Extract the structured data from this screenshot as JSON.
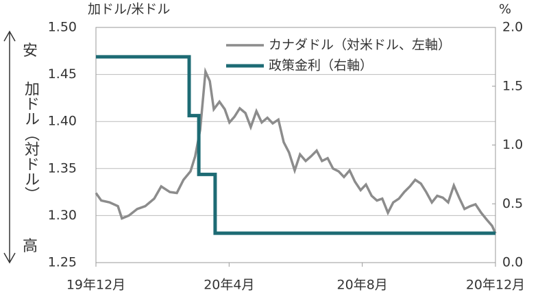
{
  "chart_data": {
    "type": "line",
    "y_label": "加ドル/米ドル",
    "y2_label": "%",
    "annotations": [
      "安",
      "加ドル（対ドル）",
      "高"
    ],
    "xlim": [
      0,
      12
    ],
    "xticks": [
      {
        "value": 0,
        "label": "19年12月"
      },
      {
        "value": 4,
        "label": "20年4月"
      },
      {
        "value": 8,
        "label": "20年8月"
      },
      {
        "value": 12,
        "label": "20年12月"
      }
    ],
    "ylim": [
      1.25,
      1.5
    ],
    "yticks": [
      {
        "value": 1.5,
        "label": "1.50"
      },
      1.45,
      {
        "value": 1.4,
        "label": "1.40"
      },
      1.35,
      {
        "value": 1.3,
        "label": "1.30"
      },
      1.25
    ],
    "y2lim": [
      0,
      2
    ],
    "y2ticks": [
      {
        "value": 2,
        "label": "2.0"
      },
      1.5,
      {
        "value": 1,
        "label": "1.0"
      },
      0.5,
      {
        "value": 0,
        "label": "0.0"
      }
    ],
    "grid": true,
    "legend": "top-right",
    "series": [
      {
        "name": "カナダドル（対米ドル、左軸）",
        "color": "#8c8c8c",
        "axis": "y",
        "x": [
          0,
          0.16,
          0.41,
          0.66,
          0.78,
          0.99,
          1.24,
          1.48,
          1.75,
          1.96,
          2.22,
          2.43,
          2.63,
          2.84,
          2.98,
          3.13,
          3.29,
          3.42,
          3.54,
          3.71,
          3.87,
          4.01,
          4.16,
          4.32,
          4.49,
          4.65,
          4.82,
          4.98,
          5.15,
          5.31,
          5.48,
          5.64,
          5.8,
          5.97,
          6.13,
          6.3,
          6.46,
          6.63,
          6.79,
          6.96,
          7.12,
          7.29,
          7.45,
          7.62,
          7.78,
          7.95,
          8.11,
          8.28,
          8.44,
          8.6,
          8.77,
          8.93,
          9.1,
          9.26,
          9.43,
          9.59,
          9.76,
          9.92,
          10.09,
          10.25,
          10.42,
          10.58,
          10.75,
          10.91,
          11.07,
          11.24,
          11.4,
          11.57,
          11.73,
          11.9,
          12
        ],
        "values": [
          1.324,
          1.316,
          1.314,
          1.31,
          1.297,
          1.3,
          1.307,
          1.31,
          1.318,
          1.331,
          1.325,
          1.324,
          1.338,
          1.347,
          1.363,
          1.391,
          1.453,
          1.443,
          1.413,
          1.421,
          1.413,
          1.399,
          1.405,
          1.414,
          1.409,
          1.394,
          1.411,
          1.399,
          1.404,
          1.398,
          1.402,
          1.378,
          1.367,
          1.348,
          1.365,
          1.358,
          1.363,
          1.369,
          1.358,
          1.361,
          1.35,
          1.347,
          1.341,
          1.348,
          1.336,
          1.327,
          1.333,
          1.321,
          1.316,
          1.318,
          1.303,
          1.314,
          1.318,
          1.325,
          1.331,
          1.338,
          1.334,
          1.325,
          1.314,
          1.321,
          1.319,
          1.314,
          1.332,
          1.319,
          1.307,
          1.31,
          1.312,
          1.303,
          1.296,
          1.289,
          1.281
        ]
      },
      {
        "name": "政策金利（右軸）",
        "color": "#1d6b74",
        "axis": "y2",
        "x": [
          0,
          2.8,
          2.8,
          3.09,
          3.09,
          3.58,
          3.58,
          12
        ],
        "values": [
          1.75,
          1.75,
          1.25,
          1.25,
          0.75,
          0.75,
          0.25,
          0.25
        ]
      }
    ]
  }
}
